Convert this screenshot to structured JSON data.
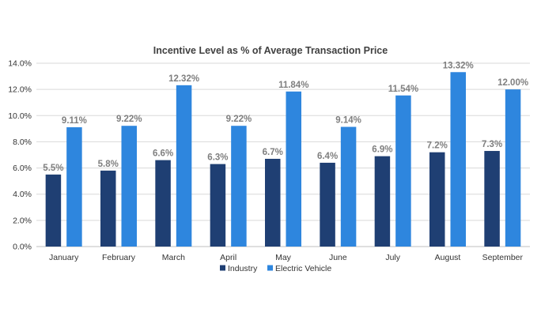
{
  "chart_data": {
    "type": "bar",
    "title": "Incentive Level as % of Average Transaction Price",
    "categories": [
      "January",
      "February",
      "March",
      "April",
      "May",
      "June",
      "July",
      "August",
      "September"
    ],
    "series": [
      {
        "name": "Industry",
        "color": "#1f3f73",
        "values": [
          5.5,
          5.8,
          6.6,
          6.3,
          6.7,
          6.4,
          6.9,
          7.2,
          7.3
        ],
        "labels": [
          "5.5%",
          "5.8%",
          "6.6%",
          "6.3%",
          "6.7%",
          "6.4%",
          "6.9%",
          "7.2%",
          "7.3%"
        ]
      },
      {
        "name": "Electric Vehicle",
        "color": "#2e86de",
        "values": [
          9.11,
          9.22,
          12.32,
          9.22,
          11.84,
          9.14,
          11.54,
          13.32,
          12.0
        ],
        "labels": [
          "9.11%",
          "9.22%",
          "12.32%",
          "9.22%",
          "11.84%",
          "9.14%",
          "11.54%",
          "13.32%",
          "12.00%"
        ]
      }
    ],
    "ylim": [
      0,
      14
    ],
    "yticks": [
      "0.0%",
      "2.0%",
      "4.0%",
      "6.0%",
      "8.0%",
      "10.0%",
      "12.0%",
      "14.0%"
    ],
    "grid": true,
    "legend_position": "bottom"
  }
}
